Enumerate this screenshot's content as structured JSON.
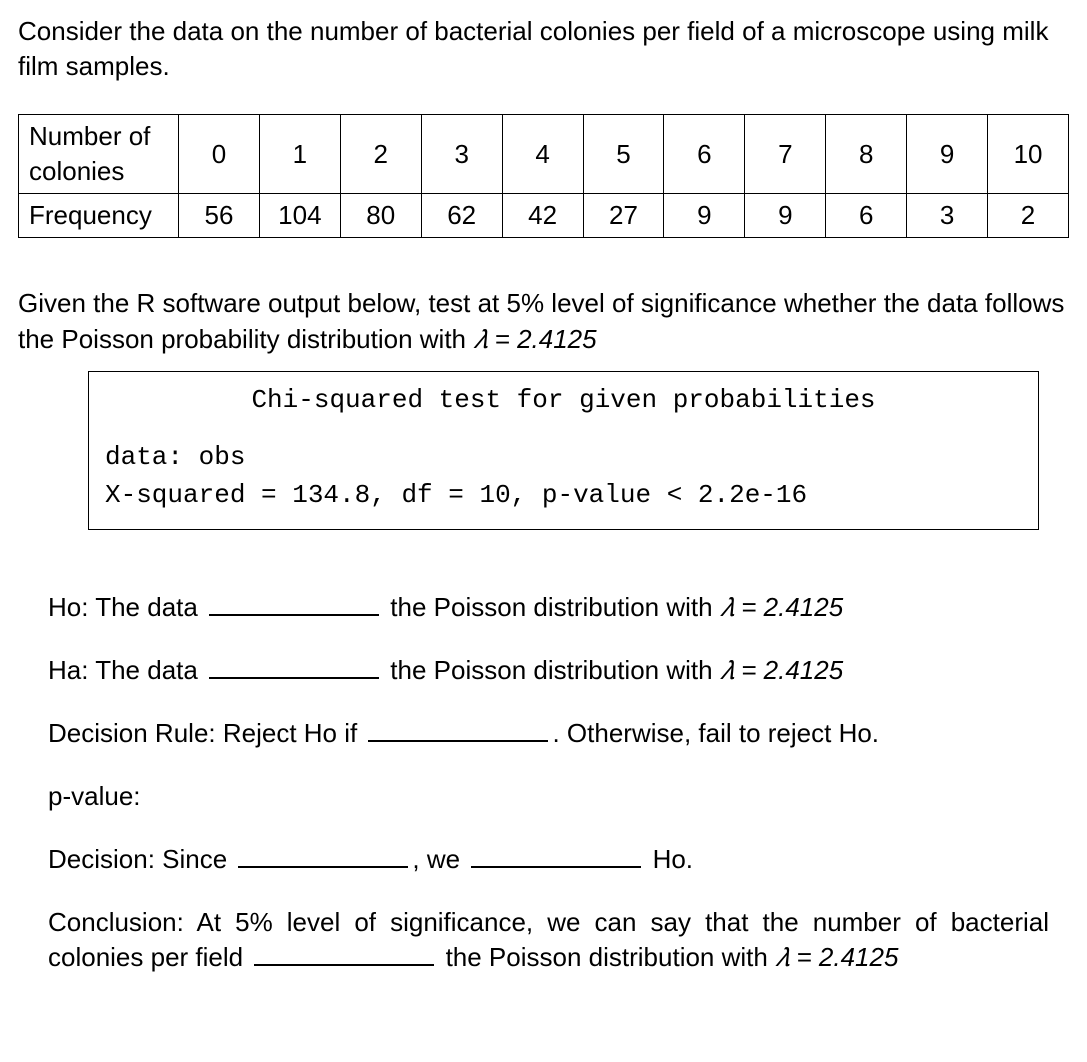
{
  "intro": "Consider the data on the number of bacterial colonies per field of a microscope using milk film samples.",
  "table": {
    "row1_label": "Number of colonies",
    "row2_label": "Frequency",
    "colonies": [
      "0",
      "1",
      "2",
      "3",
      "4",
      "5",
      "6",
      "7",
      "8",
      "9",
      "10"
    ],
    "freq": [
      "56",
      "104",
      "80",
      "62",
      "42",
      "27",
      "9",
      "9",
      "6",
      "3",
      "2"
    ]
  },
  "prompt2_a": "Given the R software output below, test at 5% level of significance whether the data follows the Poisson probability distribution with ",
  "lambda_eq": "𝜆 = 2.4125",
  "routput": {
    "title": "Chi-squared test for given probabilities",
    "line1": "data:  obs",
    "line2": "X-squared = 134.8, df = 10, p-value < 2.2e-16"
  },
  "q": {
    "ho_a": "Ho: The data ",
    "ho_b": " the Poisson distribution with ",
    "ha_a": "Ha: The data ",
    "ha_b": " the Poisson distribution with ",
    "dr_a": "Decision Rule: Reject Ho if ",
    "dr_b": ". Otherwise, fail to reject Ho.",
    "pval": "p-value:",
    "dec_a": "Decision: Since ",
    "dec_b": ", we ",
    "dec_c": " Ho.",
    "con_a": "Conclusion: At 5% level of significance, we can say that the number of bacterial colonies per field ",
    "con_b": " the Poisson distribution with ",
    "con_c": "𝜆 = 2.4125"
  }
}
